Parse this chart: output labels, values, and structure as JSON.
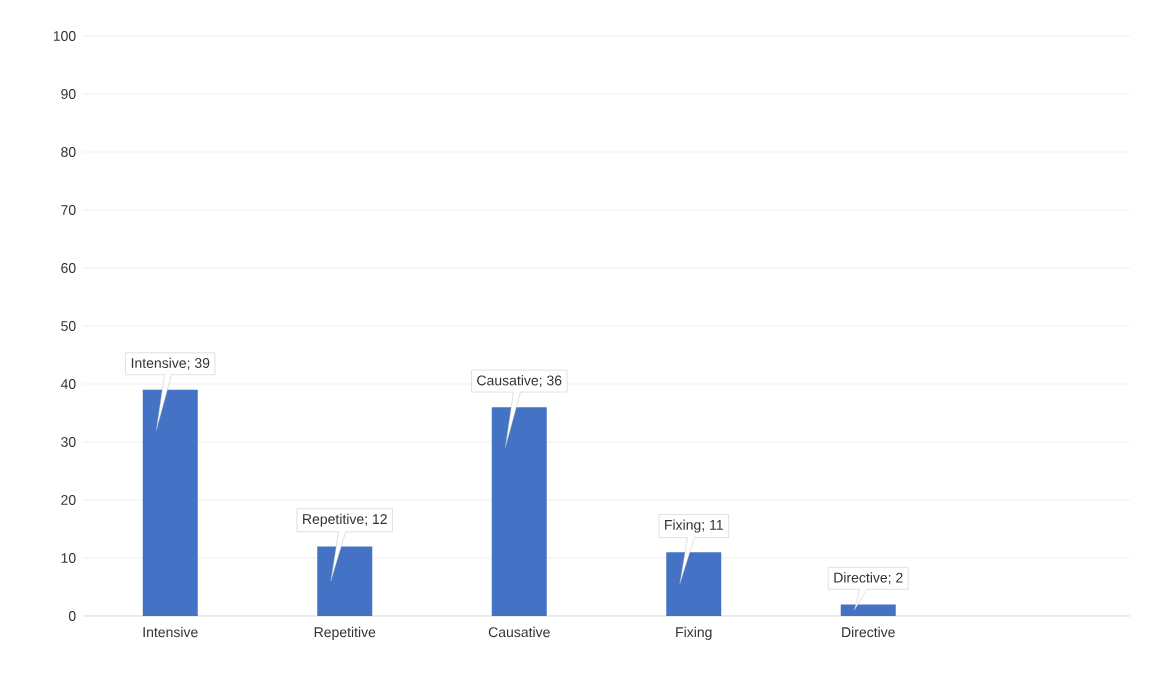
{
  "chart_data": {
    "type": "bar",
    "categories": [
      "Intensive",
      "Repetitive",
      "Causative",
      "Fixing",
      "Directive",
      null
    ],
    "values": [
      39,
      12,
      36,
      11,
      2,
      null
    ],
    "value_labels": [
      "Intensive; 39",
      "Repetitive; 12",
      "Causative; 36",
      "Fixing; 11",
      "Directive; 2",
      null
    ],
    "color": "#4472c4",
    "ylim": [
      0,
      100
    ],
    "yticks": [
      0,
      10,
      20,
      30,
      40,
      50,
      60,
      70,
      80,
      90,
      100
    ],
    "grid": "y"
  }
}
